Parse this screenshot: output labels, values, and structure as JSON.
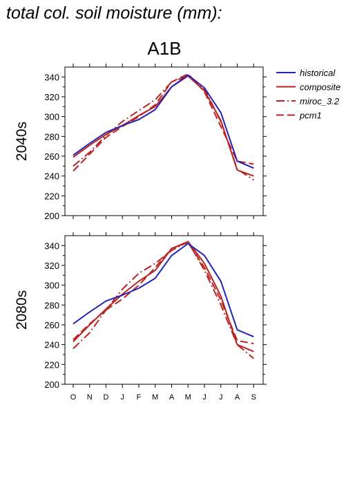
{
  "page": {
    "title": "total col. soil moisture (mm):",
    "scenario": "A1B"
  },
  "colors": {
    "historical": "#2222bb",
    "model": "#bb2222"
  },
  "chart_data": [
    {
      "type": "line",
      "panel_label": "2040s",
      "x": [
        "O",
        "N",
        "D",
        "J",
        "F",
        "M",
        "A",
        "M",
        "J",
        "J",
        "A",
        "S"
      ],
      "ylim": [
        200,
        350
      ],
      "yticks": [
        200,
        220,
        240,
        260,
        280,
        300,
        320,
        340
      ],
      "legend_position": "right",
      "series": [
        {
          "name": "historical",
          "style": "solid",
          "color": "#2222bb",
          "values": [
            261,
            273,
            284,
            291,
            297,
            307,
            330,
            342,
            329,
            304,
            255,
            248
          ]
        },
        {
          "name": "composite",
          "style": "solid",
          "color": "#bb2222",
          "values": [
            259,
            271,
            282,
            291,
            301,
            310,
            330,
            341,
            326,
            296,
            246,
            240
          ]
        },
        {
          "name": "miroc_3.2",
          "style": "dashdot",
          "color": "#bb2222",
          "values": [
            250,
            264,
            281,
            295,
            306,
            317,
            335,
            341,
            328,
            295,
            247,
            236
          ]
        },
        {
          "name": "pcm1",
          "style": "dashed",
          "color": "#bb2222",
          "values": [
            245,
            262,
            279,
            290,
            300,
            312,
            335,
            343,
            325,
            290,
            255,
            252
          ]
        }
      ]
    },
    {
      "type": "line",
      "panel_label": "2080s",
      "x": [
        "O",
        "N",
        "D",
        "J",
        "F",
        "M",
        "A",
        "M",
        "J",
        "J",
        "A",
        "S"
      ],
      "ylim": [
        200,
        350
      ],
      "yticks": [
        200,
        220,
        240,
        260,
        280,
        300,
        320,
        340
      ],
      "legend_position": "none",
      "series": [
        {
          "name": "historical",
          "style": "solid",
          "color": "#2222bb",
          "values": [
            261,
            273,
            284,
            290,
            297,
            307,
            330,
            342,
            330,
            304,
            255,
            248
          ]
        },
        {
          "name": "composite",
          "style": "solid",
          "color": "#bb2222",
          "values": [
            243,
            260,
            276,
            291,
            304,
            315,
            337,
            344,
            322,
            289,
            240,
            233
          ]
        },
        {
          "name": "miroc_3.2",
          "style": "dashdot",
          "color": "#bb2222",
          "values": [
            236,
            252,
            275,
            296,
            312,
            322,
            335,
            344,
            315,
            280,
            240,
            226
          ]
        },
        {
          "name": "pcm1",
          "style": "dashed",
          "color": "#bb2222",
          "values": [
            245,
            261,
            275,
            286,
            300,
            318,
            337,
            343,
            318,
            285,
            244,
            241
          ]
        }
      ]
    }
  ]
}
